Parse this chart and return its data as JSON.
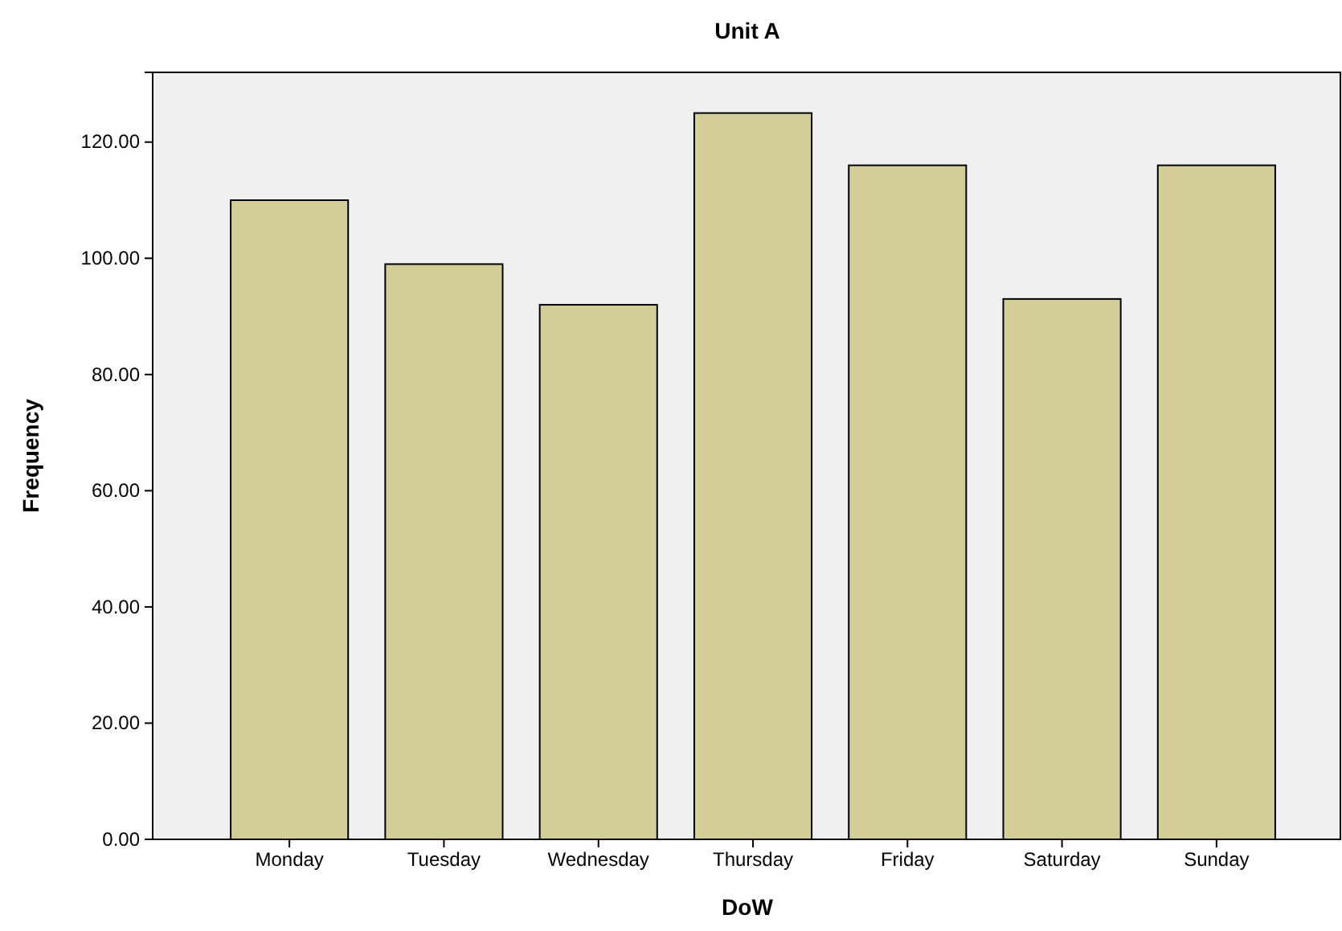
{
  "chart_data": {
    "type": "bar",
    "title": "Unit A",
    "xlabel": "DoW",
    "ylabel": "Frequency",
    "categories": [
      "Monday",
      "Tuesday",
      "Wednesday",
      "Thursday",
      "Friday",
      "Saturday",
      "Sunday"
    ],
    "values": [
      110,
      99,
      92,
      125,
      116,
      93,
      116
    ],
    "color": "#d3ce97",
    "ylim": [
      0,
      132
    ],
    "yticks": [
      {
        "value": 0,
        "label": "0.00"
      },
      {
        "value": 20,
        "label": "20.00"
      },
      {
        "value": 40,
        "label": "40.00"
      },
      {
        "value": 60,
        "label": "60.00"
      },
      {
        "value": 80,
        "label": "80.00"
      },
      {
        "value": 100,
        "label": "100.00"
      },
      {
        "value": 120,
        "label": "120.00"
      }
    ],
    "grid": false
  }
}
